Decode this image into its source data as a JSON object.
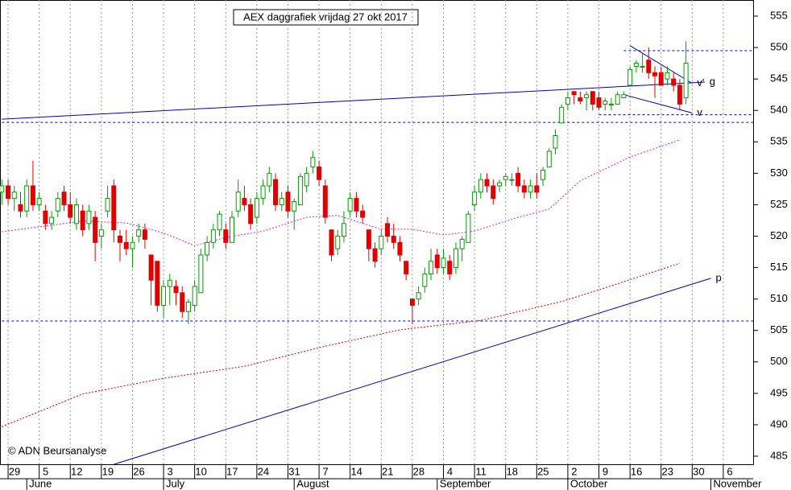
{
  "chart_data": {
    "type": "candlestick",
    "title": "AEX daggrafiek vrijdag 27 okt 2017",
    "credit": "© ADN Beursanalyse",
    "up_color": "#00a000",
    "down_color": "#e00000",
    "xlim": [
      -0.3,
      120.8
    ],
    "ylim": [
      483.72,
      557.56
    ],
    "yticks": [
      485,
      490,
      495,
      500,
      505,
      510,
      515,
      520,
      525,
      530,
      535,
      540,
      545,
      550,
      555
    ],
    "xticks": [
      {
        "value": 1,
        "label": "29"
      },
      {
        "value": 6,
        "label": "5"
      },
      {
        "value": 11,
        "label": "12"
      },
      {
        "value": 16,
        "label": "19"
      },
      {
        "value": 21,
        "label": "26"
      },
      {
        "value": 26,
        "label": "3"
      },
      {
        "value": 31,
        "label": "10"
      },
      {
        "value": 36,
        "label": "17"
      },
      {
        "value": 41,
        "label": "24"
      },
      {
        "value": 46,
        "label": "31"
      },
      {
        "value": 51,
        "label": "7"
      },
      {
        "value": 56,
        "label": "14"
      },
      {
        "value": 61,
        "label": "21"
      },
      {
        "value": 66,
        "label": "28"
      },
      {
        "value": 71,
        "label": "4"
      },
      {
        "value": 76,
        "label": "11"
      },
      {
        "value": 81,
        "label": "18"
      },
      {
        "value": 86,
        "label": "25"
      },
      {
        "value": 91,
        "label": "2"
      },
      {
        "value": 96,
        "label": "9"
      },
      {
        "value": 101,
        "label": "16"
      },
      {
        "value": 106,
        "label": "23"
      },
      {
        "value": 111,
        "label": "30"
      },
      {
        "value": 116,
        "label": "6"
      }
    ],
    "months": [
      {
        "value": 4,
        "label": "June"
      },
      {
        "value": 26,
        "label": "July"
      },
      {
        "value": 47,
        "label": "August"
      },
      {
        "value": 70,
        "label": "September"
      },
      {
        "value": 91,
        "label": "October"
      },
      {
        "value": 114,
        "label": "November"
      }
    ],
    "open": [
      527,
      528,
      526,
      525,
      524,
      528,
      525,
      524,
      522,
      524,
      527,
      525,
      522,
      524,
      522,
      523,
      520,
      524,
      528,
      520,
      519,
      518,
      520,
      521,
      517,
      516,
      509,
      512,
      512,
      511,
      508,
      509,
      511,
      517,
      519,
      521,
      521,
      519,
      524,
      526,
      525,
      523,
      526,
      528,
      529,
      525,
      527,
      524,
      525,
      528,
      531,
      531,
      528,
      521,
      518,
      520,
      524,
      526,
      524,
      521,
      518,
      518,
      522,
      520,
      519,
      516,
      510,
      510,
      512,
      514,
      517,
      515,
      516,
      515,
      518,
      519,
      525,
      527,
      529,
      528,
      528,
      529,
      529,
      530,
      528,
      527,
      528,
      529,
      531,
      534,
      538,
      541,
      543,
      542,
      542,
      543,
      542,
      541,
      541,
      541,
      542,
      544,
      547,
      547,
      548,
      546,
      546,
      545,
      545,
      544,
      542
    ],
    "high": [
      529,
      529,
      528,
      527,
      529,
      532,
      527,
      525,
      524,
      527,
      528,
      527,
      526,
      525,
      525,
      524,
      522,
      528,
      529,
      521,
      521,
      520,
      522,
      522,
      517,
      516,
      513,
      514,
      513,
      512,
      510,
      513,
      518,
      520,
      522,
      524,
      522,
      524,
      529,
      528,
      526,
      527,
      529,
      531,
      530,
      527,
      528,
      526,
      530,
      531,
      533.5,
      532,
      529,
      521,
      521,
      524,
      527,
      527,
      525,
      521,
      519,
      521,
      523,
      522,
      520,
      516,
      510,
      512,
      515,
      518,
      518,
      518,
      517,
      519,
      520,
      524,
      528,
      530,
      530,
      529,
      529,
      530,
      530,
      531,
      529,
      529,
      530,
      531,
      534,
      537,
      541,
      543,
      543,
      543,
      543,
      543,
      543,
      542,
      542,
      543,
      543,
      547,
      548,
      549,
      550,
      547,
      547,
      547,
      546,
      545,
      551
    ],
    "low": [
      525,
      525,
      524,
      523,
      523,
      524,
      524,
      521,
      521,
      523,
      524,
      522,
      521,
      520,
      521,
      516,
      518,
      523,
      519,
      516,
      517,
      515,
      519,
      518,
      509,
      508,
      507,
      509,
      509,
      507,
      506,
      508,
      511,
      516,
      518,
      520,
      518,
      519,
      523,
      524,
      521,
      522,
      525,
      527,
      524,
      524,
      523,
      521,
      525,
      527,
      530,
      528,
      522,
      516,
      517,
      519,
      523,
      523,
      522,
      516,
      515,
      517,
      519,
      518,
      516,
      513,
      506,
      509,
      511,
      513,
      514,
      514,
      513,
      514,
      516,
      519,
      524,
      526,
      527,
      525,
      527,
      528,
      528,
      527,
      526,
      526,
      526,
      528,
      531,
      533,
      538,
      540,
      541,
      541,
      540,
      540,
      540,
      540,
      540,
      541,
      542,
      544,
      546,
      546,
      545,
      542,
      544,
      544,
      543,
      540,
      541
    ],
    "close": [
      528,
      526,
      527,
      524,
      528,
      525,
      526,
      522,
      523,
      526,
      525,
      523,
      525,
      521,
      524,
      519,
      521,
      526,
      521,
      519,
      518,
      519,
      521,
      519.5,
      513,
      509,
      512,
      513,
      511,
      508,
      509.5,
      512,
      517,
      519,
      521,
      523.5,
      519,
      523,
      527,
      525,
      522,
      526,
      528,
      530,
      525,
      526,
      524,
      525.5,
      529.5,
      530,
      532.5,
      529,
      523,
      517,
      520,
      522,
      526,
      524,
      523,
      518,
      516,
      520,
      520,
      519,
      517,
      514,
      509,
      511,
      514,
      516,
      515,
      516.5,
      514,
      518,
      519.5,
      523.5,
      527,
      529,
      528,
      526,
      528.5,
      529.5,
      529,
      528,
      527,
      528,
      527,
      530.5,
      533.5,
      536,
      540.5,
      542,
      542.5,
      541.5,
      542.5,
      541,
      540.5,
      541.5,
      541,
      542.5,
      542.5,
      546.5,
      547.5,
      547,
      546,
      545.5,
      544,
      546,
      544,
      541,
      547.5
    ],
    "lines": [
      {
        "color": "#e020e0",
        "x": [
          0,
          13,
          20,
          26,
          31,
          36,
          42,
          49,
          54,
          61,
          66,
          71,
          76,
          83,
          88,
          93,
          101,
          109
        ],
        "values": [
          520.7,
          522.4,
          522.1,
          520.5,
          518.5,
          519.8,
          520.8,
          523,
          523.3,
          521.1,
          521.1,
          520.2,
          520.8,
          523,
          524.3,
          528.8,
          532.6,
          535.3
        ]
      },
      {
        "color": "#e00000",
        "x": [
          0,
          13,
          26,
          39,
          52,
          64,
          77,
          90,
          98,
          109
        ],
        "values": [
          489.7,
          494.9,
          497.4,
          499.3,
          502.5,
          505.1,
          506.6,
          509.6,
          512.1,
          515.7
        ]
      },
      {
        "color": "#0000c0",
        "label": "g",
        "x": [
          0,
          113
        ],
        "values": [
          538.6,
          544.5
        ]
      },
      {
        "color": "#0000c0",
        "label": "p",
        "x": [
          18,
          114
        ],
        "values": [
          483.7,
          513.3
        ]
      },
      {
        "color": "#0000c0",
        "label": "v'",
        "x": [
          101,
          111
        ],
        "values": [
          550.3,
          544.3
        ]
      },
      {
        "color": "#0000c0",
        "label": "v",
        "x": [
          100,
          111
        ],
        "values": [
          542.5,
          539.6
        ]
      }
    ],
    "levels": [
      {
        "value": 549.5,
        "from": 100
      },
      {
        "value": 539.3,
        "from": 96
      },
      {
        "value": 538.1,
        "from": 0
      },
      {
        "value": 506.5,
        "from": 0
      }
    ]
  }
}
